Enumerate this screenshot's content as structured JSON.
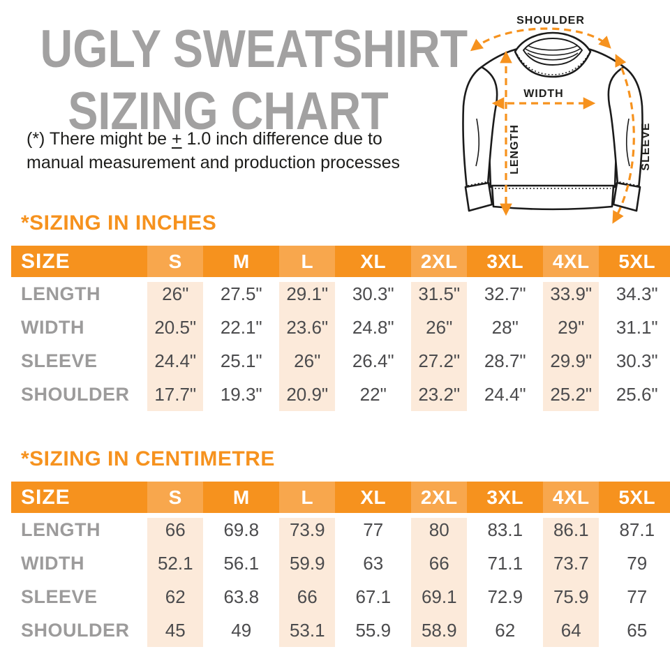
{
  "colors": {
    "orange": "#F6921E",
    "orange_light": "#F8A74D",
    "peach": "#FCEADA",
    "title_gray": "#A2A1A1",
    "label_gray": "#9C9B9B",
    "value_gray": "#4B4B4D",
    "ink": "#1D1D1B"
  },
  "header": {
    "title_line1": "UGLY SWEATSHIRT",
    "title_line2": "SIZING CHART"
  },
  "note": {
    "prefix": "(*) There might be ",
    "plus_minus": "+",
    "line1_rest": " 1.0 inch difference due to",
    "line2": "manual measurement and production processes"
  },
  "diagram": {
    "labels": {
      "shoulder": "SHOULDER",
      "width": "WIDTH",
      "length": "LENGTH",
      "sleeve": "SLEEVE"
    }
  },
  "tables": [
    {
      "heading": "*SIZING IN INCHES",
      "columns": [
        "SIZE",
        "S",
        "M",
        "L",
        "XL",
        "2XL",
        "3XL",
        "4XL",
        "5XL"
      ],
      "highlight_columns": [
        1,
        3,
        5,
        7
      ],
      "rows": [
        {
          "label": "LENGTH",
          "values": [
            "26\"",
            "27.5\"",
            "29.1\"",
            "30.3\"",
            "31.5\"",
            "32.7\"",
            "33.9\"",
            "34.3\""
          ]
        },
        {
          "label": "WIDTH",
          "values": [
            "20.5\"",
            "22.1\"",
            "23.6\"",
            "24.8\"",
            "26\"",
            "28\"",
            "29\"",
            "31.1\""
          ]
        },
        {
          "label": "SLEEVE",
          "values": [
            "24.4\"",
            "25.1\"",
            "26\"",
            "26.4\"",
            "27.2\"",
            "28.7\"",
            "29.9\"",
            "30.3\""
          ]
        },
        {
          "label": "SHOULDER",
          "values": [
            "17.7\"",
            "19.3\"",
            "20.9\"",
            "22\"",
            "23.2\"",
            "24.4\"",
            "25.2\"",
            "25.6\""
          ]
        }
      ]
    },
    {
      "heading": "*SIZING IN CENTIMETRE",
      "columns": [
        "SIZE",
        "S",
        "M",
        "L",
        "XL",
        "2XL",
        "3XL",
        "4XL",
        "5XL"
      ],
      "highlight_columns": [
        1,
        3,
        5,
        7
      ],
      "rows": [
        {
          "label": "LENGTH",
          "values": [
            "66",
            "69.8",
            "73.9",
            "77",
            "80",
            "83.1",
            "86.1",
            "87.1"
          ]
        },
        {
          "label": "WIDTH",
          "values": [
            "52.1",
            "56.1",
            "59.9",
            "63",
            "66",
            "71.1",
            "73.7",
            "79"
          ]
        },
        {
          "label": "SLEEVE",
          "values": [
            "62",
            "63.8",
            "66",
            "67.1",
            "69.1",
            "72.9",
            "75.9",
            "77"
          ]
        },
        {
          "label": "SHOULDER",
          "values": [
            "45",
            "49",
            "53.1",
            "55.9",
            "58.9",
            "62",
            "64",
            "65"
          ]
        }
      ]
    }
  ]
}
